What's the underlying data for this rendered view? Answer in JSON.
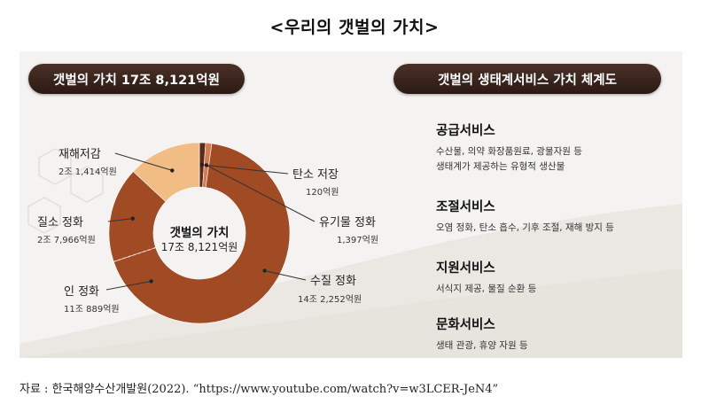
{
  "page_title": "<우리의 갯벌의 가치>",
  "left_banner": "갯벌의 가치 17조 8,121억원",
  "right_banner": "갯벌의 생태계서비스 가치 체계도",
  "center": {
    "title": "갯벌의 가치",
    "value": "17조 8,121억원"
  },
  "chart_data": {
    "type": "pie",
    "total_label": "17조 8,121억원",
    "unit": "억원",
    "slices": [
      {
        "label": "탄소 저장",
        "value_text": "120억원",
        "value": 120,
        "color": "#5a2b1a"
      },
      {
        "label": "유기물 정화",
        "value_text": "1,397억원",
        "value": 1397,
        "color": "#d47b52"
      },
      {
        "label": "수질 정화",
        "value_text": "14조 2,252억원",
        "value": 142252,
        "color": "#a04b24",
        "note": "includes 인 정화 and 질소 정화 sub-areas"
      },
      {
        "label": "인 정화",
        "value_text": "11조 889억원",
        "value": 110889,
        "color": "#a04b24"
      },
      {
        "label": "질소 정화",
        "value_text": "2조 7,966억원",
        "value": 27966,
        "color": "#a04b24"
      },
      {
        "label": "재해저감",
        "value_text": "2조 1,414억원",
        "value": 21414,
        "color": "#f2bd85"
      }
    ],
    "display_segments": [
      {
        "name": "탄소 저장",
        "value": 120,
        "color": "#5a2b1a"
      },
      {
        "name": "유기물 정화",
        "value": 1397,
        "color": "#d47b52"
      },
      {
        "name": "인 정화",
        "value": 110889,
        "color": "#a04b24"
      },
      {
        "name": "질소 정화",
        "value": 27966,
        "color": "#a04b24"
      },
      {
        "name": "재해저감",
        "value": 21414,
        "color": "#f2bd85"
      }
    ]
  },
  "services": [
    {
      "title": "공급서비스",
      "lines": [
        "수산물, 의약 화장품원료, 광물자원 등",
        "생태계가 제공하는 유형적 생산물"
      ]
    },
    {
      "title": "조절서비스",
      "lines": [
        "오염 정화, 탄소 흡수, 기후 조절, 재해 방지 등"
      ]
    },
    {
      "title": "지원서비스",
      "lines": [
        "서식지 제공, 물질 순환 등"
      ]
    },
    {
      "title": "문화서비스",
      "lines": [
        "생태 관광, 휴양 자원 등"
      ]
    }
  ],
  "source": "자료 : 한국해양수산개발원(2022). “https://www.youtube.com/watch?v=w3LCER-JeN4”"
}
